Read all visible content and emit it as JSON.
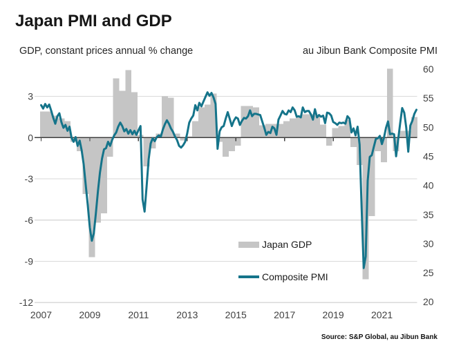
{
  "title": "Japan PMI and GDP",
  "subtitle_left": "GDP, constant prices annual % change",
  "subtitle_right": "au Jibun Bank Composite PMI",
  "source": "Source: S&P Global, au Jibun Bank",
  "legend": {
    "gdp_label": "Japan GDP",
    "pmi_label": "Composite PMI"
  },
  "colors": {
    "bar": "#c5c5c5",
    "line": "#15748a",
    "gridline": "#d9d9d9",
    "zero_line": "#3f3f3f",
    "tick_text": "#404040"
  },
  "chart_data": {
    "type": "combo-bar-line",
    "title": "Japan PMI and GDP",
    "left_axis": {
      "label": "GDP, constant prices annual % change",
      "ticks": [
        3,
        0,
        -3,
        -6,
        -9,
        -12
      ],
      "min": -12,
      "max": 5
    },
    "right_axis": {
      "label": "au Jibun Bank Composite PMI",
      "ticks": [
        60,
        55,
        50,
        45,
        40,
        35,
        30,
        25,
        20
      ],
      "min": 20,
      "max": 60
    },
    "x_axis": {
      "tick_years": [
        2007,
        2009,
        2011,
        2013,
        2015,
        2017,
        2019,
        2021
      ],
      "start": "2007-01",
      "end": "2022-06"
    },
    "series": [
      {
        "name": "Japan GDP",
        "type": "bar",
        "unit": "% y/y",
        "freq": "quarterly",
        "start": "2007Q1",
        "values": [
          1.9,
          1.9,
          1.6,
          1.4,
          1.2,
          -0.3,
          -1.0,
          -4.1,
          -8.7,
          -6.2,
          -5.5,
          -1.4,
          4.3,
          3.4,
          4.9,
          3.3,
          0.2,
          -2.1,
          -0.8,
          0.3,
          3.0,
          2.9,
          0.3,
          -0.2,
          0.1,
          1.2,
          2.2,
          2.4,
          3.2,
          -0.3,
          -1.4,
          -1.0,
          -0.6,
          2.3,
          2.3,
          2.2,
          0.9,
          1.0,
          1.0,
          1.0,
          1.2,
          1.4,
          1.6,
          1.7,
          1.7,
          1.6,
          0.95,
          -0.6,
          0.7,
          0.85,
          1.3,
          -0.7,
          -2.0,
          -10.3,
          -5.7,
          -1.0,
          -1.8,
          7.3,
          -1.0,
          0.5,
          0.5,
          1.5
        ]
      },
      {
        "name": "Composite PMI",
        "type": "line",
        "unit": "index",
        "freq": "monthly",
        "start": "2007-01",
        "values": [
          53.8,
          53.2,
          54.0,
          53.4,
          53.9,
          52.8,
          51.6,
          50.6,
          51.9,
          52.4,
          50.9,
          49.9,
          50.4,
          49.4,
          50.1,
          48.2,
          47.5,
          48.3,
          46.8,
          47.7,
          46.0,
          43.6,
          40.0,
          36.6,
          32.8,
          30.5,
          31.8,
          35.2,
          39.0,
          42.2,
          44.6,
          46.2,
          46.4,
          47.5,
          46.8,
          47.8,
          48.6,
          49.1,
          50.1,
          50.8,
          50.2,
          49.3,
          49.7,
          48.9,
          49.5,
          48.8,
          49.4,
          48.7,
          49.5,
          50.2,
          37.6,
          35.5,
          39.8,
          44.5,
          47.2,
          48.1,
          47.6,
          48.3,
          48.6,
          48.4,
          49.6,
          50.5,
          51.2,
          50.6,
          49.8,
          49.2,
          48.4,
          47.8,
          46.8,
          46.5,
          46.9,
          47.5,
          48.9,
          50.8,
          51.5,
          52.0,
          53.8,
          52.9,
          54.2,
          53.6,
          54.4,
          55.2,
          56.0,
          55.4,
          55.9,
          55.1,
          54.0,
          46.3,
          49.3,
          50.0,
          50.2,
          51.5,
          52.6,
          51.4,
          50.2,
          51.1,
          51.7,
          51.5,
          50.4,
          51.1,
          51.6,
          51.5,
          51.9,
          52.9,
          51.9,
          52.3,
          52.3,
          52.2,
          52.1,
          51.0,
          49.9,
          48.7,
          49.2,
          49.0,
          50.1,
          49.8,
          48.7,
          51.3,
          52.0,
          52.8,
          52.3,
          52.2,
          52.9,
          52.6,
          53.4,
          52.9,
          51.8,
          51.9,
          51.7,
          53.4,
          52.6,
          52.8,
          52.8,
          52.2,
          51.3,
          53.1,
          51.7,
          52.1,
          51.8,
          52.0,
          50.7,
          52.5,
          52.4,
          52.0,
          50.9,
          50.7,
          50.4,
          50.8,
          50.7,
          50.8,
          50.6,
          51.9,
          51.5,
          49.1,
          49.8,
          48.6,
          50.1,
          47.0,
          36.2,
          25.8,
          27.8,
          40.8,
          44.9,
          45.2,
          46.6,
          48.0,
          48.1,
          48.5,
          47.1,
          48.2,
          49.9,
          51.0,
          48.8,
          48.9,
          48.8,
          45.0,
          47.9,
          50.7,
          53.3,
          52.5,
          49.9,
          45.8,
          50.3,
          51.1,
          52.3,
          53.0
        ]
      }
    ],
    "legend": [
      "Japan GDP",
      "Composite PMI"
    ],
    "source": "Source: S&P Global, au Jibun Bank",
    "grid": "horizontal"
  }
}
